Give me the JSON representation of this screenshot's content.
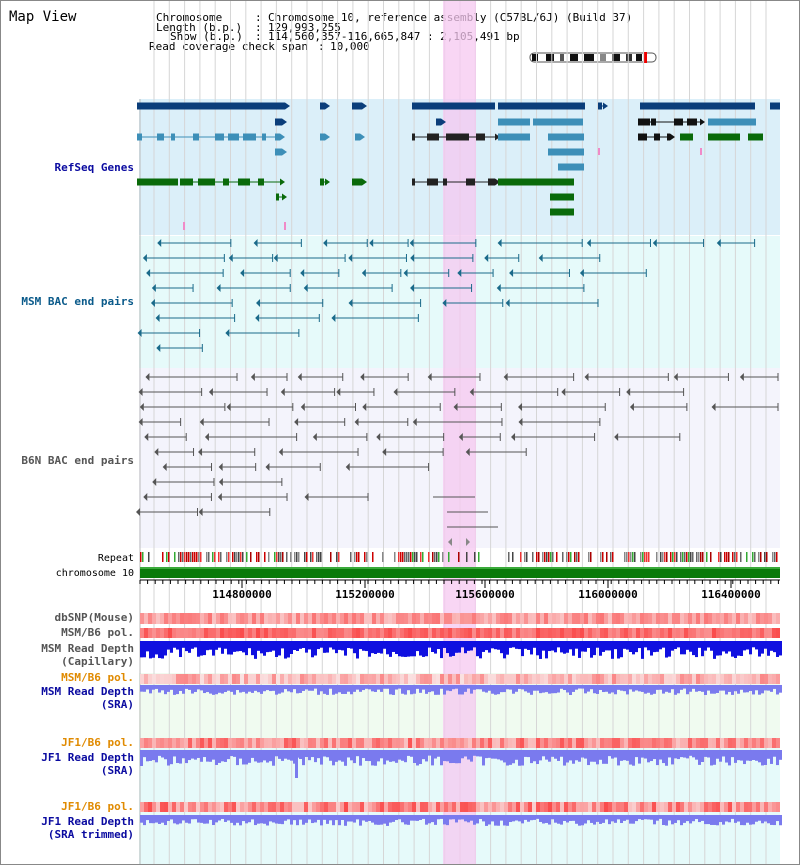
{
  "title": "Map View",
  "header": {
    "chromosome_key": "Chromosome",
    "chromosome_val": "Chromosome 10, reference assembly (C57BL/6J) (Build 37)",
    "length_key": "Length (b.p.)",
    "length_val": "129,993,255",
    "show_key": "Show (b.p.)",
    "show_val": "114,560,357-116,665,847 : 2,105,491 bp",
    "coverage_key": "Read coverage check span",
    "coverage_val": "10,000"
  },
  "tracks": {
    "refseq": "RefSeq Genes",
    "msm_bac": "MSM BAC end pairs",
    "b6n_bac": "B6N BAC end pairs",
    "repeat": "Repeat",
    "chromosome": "chromosome 10",
    "dbsnp": "dbSNP(Mouse)",
    "msm_pol": "MSM/B6 pol.",
    "msm_depth_cap_1": "MSM Read Depth",
    "msm_depth_cap_2": "(Capillary)",
    "msm_pol2": "MSM/B6 pol.",
    "msm_depth_sra_1": "MSM Read Depth",
    "msm_depth_sra_2": "(SRA)",
    "jf1_pol": "JF1/B6 pol.",
    "jf1_depth_sra_1": "JF1 Read Depth",
    "jf1_depth_sra_2": "(SRA)",
    "jf1_pol2": "JF1/B6 pol.",
    "jf1_depth_trim_1": "JF1 Read Depth",
    "jf1_depth_trim_2": "(SRA trimmed)"
  },
  "axis": {
    "ticks": [
      "114800000",
      "115200000",
      "115600000",
      "116000000",
      "116400000"
    ]
  },
  "colors": {
    "refseq_dark": "#0a3d7a",
    "refseq_mid": "#3d8fb8",
    "refseq_green": "#0a6a0a",
    "msm_line": "#1a6a8a",
    "b6n_line": "#555555",
    "highlight": "#f5c8f0",
    "depth_msm": "#1010e0",
    "depth_sra": "#7a7aee",
    "label_blue": "#0a0aa0",
    "label_teal": "#0a5a8a",
    "label_orange": "#e08a00"
  }
}
